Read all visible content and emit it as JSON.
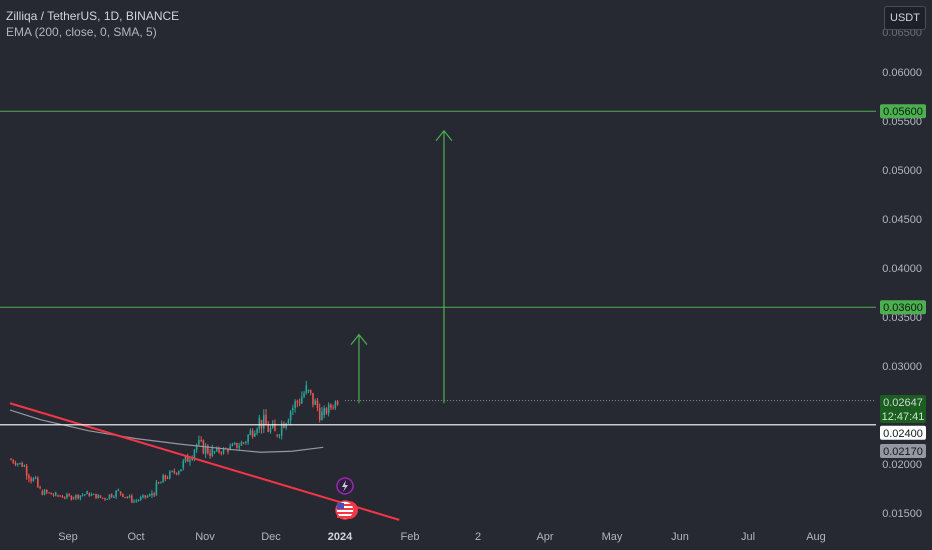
{
  "header": {
    "title": "Zilliqa / TetherUS, 1D, BINANCE",
    "indicator": "EMA (200, close, 0, SMA, 5)"
  },
  "currency_button": "USDT",
  "colors": {
    "background": "#262832",
    "text": "#b2b5be",
    "candle_up": "#26a69a",
    "candle_down": "#ef5350",
    "trendline": "#f23645",
    "ema": "#9598a1",
    "level_lines": "#4caf50",
    "support_line": "#ffffff"
  },
  "chart_data": {
    "type": "candlestick",
    "symbol": "Zilliqa / TetherUS",
    "interval": "1D",
    "exchange": "BINANCE",
    "x_tick_labels": [
      "Sep",
      "Oct",
      "Nov",
      "Dec",
      "2024",
      "Feb",
      "2",
      "Apr",
      "May",
      "Jun",
      "Jul",
      "Aug"
    ],
    "y_tick_labels": [
      "0.06000",
      "0.05500",
      "0.05000",
      "0.04500",
      "0.04000",
      "0.03500",
      "0.03000",
      "0.02000",
      "0.01500"
    ],
    "ylim": [
      0.0135,
      0.0655
    ],
    "x_range": [
      "2023-08-20",
      "2024-08-28"
    ],
    "price_labels": {
      "level_high": "0.05600",
      "level_mid": "0.03600",
      "last_price": "0.02647",
      "countdown": "12:47:41",
      "support": "0.02400",
      "ema_value": "0.02170"
    },
    "horizontal_levels": [
      0.056,
      0.036,
      0.024
    ],
    "last_price": 0.02647,
    "ema_200_end": 0.0217,
    "candles_weekly_approx": [
      [
        "2023-08-20",
        0.0205,
        0.021,
        0.0195,
        0.0198
      ],
      [
        "2023-08-27",
        0.0198,
        0.02,
        0.017,
        0.0172
      ],
      [
        "2023-09-03",
        0.0172,
        0.0178,
        0.0163,
        0.0168
      ],
      [
        "2023-09-10",
        0.0168,
        0.0172,
        0.016,
        0.0166
      ],
      [
        "2023-09-17",
        0.0166,
        0.0175,
        0.0162,
        0.017
      ],
      [
        "2023-09-24",
        0.017,
        0.0174,
        0.0163,
        0.0165
      ],
      [
        "2023-10-01",
        0.0165,
        0.0178,
        0.0162,
        0.0172
      ],
      [
        "2023-10-08",
        0.0172,
        0.0175,
        0.016,
        0.0162
      ],
      [
        "2023-10-15",
        0.0162,
        0.017,
        0.0158,
        0.0168
      ],
      [
        "2023-10-22",
        0.0168,
        0.019,
        0.0165,
        0.0186
      ],
      [
        "2023-10-29",
        0.0186,
        0.02,
        0.0182,
        0.0196
      ],
      [
        "2023-11-05",
        0.0196,
        0.0225,
        0.0193,
        0.022
      ],
      [
        "2023-11-12",
        0.022,
        0.0232,
        0.02,
        0.0212
      ],
      [
        "2023-11-19",
        0.0212,
        0.0222,
        0.0205,
        0.0215
      ],
      [
        "2023-11-26",
        0.0215,
        0.0228,
        0.0208,
        0.0222
      ],
      [
        "2023-12-03",
        0.0222,
        0.025,
        0.0218,
        0.0245
      ],
      [
        "2023-12-10",
        0.0245,
        0.0258,
        0.0215,
        0.023
      ],
      [
        "2023-12-17",
        0.023,
        0.0265,
        0.0225,
        0.0255
      ],
      [
        "2023-12-24",
        0.0255,
        0.0292,
        0.025,
        0.0275
      ],
      [
        "2023-12-31",
        0.0275,
        0.028,
        0.024,
        0.025
      ],
      [
        "2024-01-07",
        0.025,
        0.0268,
        0.0245,
        0.0265
      ]
    ],
    "ema_points": [
      [
        "2023-08-20",
        0.0255
      ],
      [
        "2023-09-03",
        0.0245
      ],
      [
        "2023-09-24",
        0.0234
      ],
      [
        "2023-10-15",
        0.0226
      ],
      [
        "2023-11-05",
        0.022
      ],
      [
        "2023-11-26",
        0.0215
      ],
      [
        "2023-12-10",
        0.0212
      ],
      [
        "2023-12-24",
        0.0213
      ],
      [
        "2024-01-07",
        0.0217
      ]
    ],
    "trendline": [
      [
        "2023-08-20",
        0.0262
      ],
      [
        "2024-02-10",
        0.0143
      ]
    ],
    "arrows": [
      {
        "date": "2024-01-23",
        "from": 0.0262,
        "to": 0.0332
      },
      {
        "date": "2024-03-01",
        "from": 0.0262,
        "to": 0.054
      }
    ],
    "event_icons": [
      "lightning-icon",
      "us-flag-icon"
    ]
  }
}
